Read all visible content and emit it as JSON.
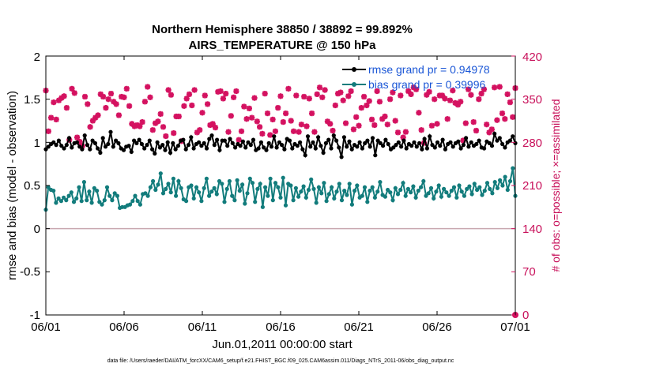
{
  "chart_data": {
    "type": "line",
    "title_line1": "Northern Hemisphere 38850 / 38892 = 99.892%",
    "title_line2": "AIRS_TEMPERATURE @ 150 hPa",
    "xlabel": "Jun.01,2011 00:00:00 start",
    "ylabel_left": "rmse and bias (model - observation)",
    "ylabel_right": "# of obs: o=possible; ×=assimilated",
    "footer": "data file: /Users/raeder/DAI/ATM_forcXX/CAM6_setup/f.e21.FHIST_BGC.f09_025.CAM6assim.011/Diags_NTrS_2011-06/obs_diag_output.nc",
    "x_ticks": [
      "06/01",
      "06/06",
      "06/11",
      "06/16",
      "06/21",
      "06/26",
      "07/01"
    ],
    "x_range_days": [
      0,
      30
    ],
    "ylim_left": [
      -1,
      2
    ],
    "y_ticks_left": [
      "2",
      "1.5",
      "1",
      "0.5",
      "0",
      "-0.5",
      "-1"
    ],
    "ylim_right": [
      0,
      420
    ],
    "y_ticks_right": [
      "420",
      "350",
      "280",
      "210",
      "140",
      "70",
      "0"
    ],
    "colors": {
      "rmse": "#000000",
      "bias": "#127c7c",
      "obs": "#d41260",
      "zero_line": "#c9a8b0"
    },
    "series": [
      {
        "name": "rmse",
        "legend": "rmse grand pr = 0.94978",
        "values": [
          0.92,
          0.95,
          0.98,
          1.0,
          0.97,
          1.02,
          0.96,
          0.93,
          0.97,
          1.05,
          0.94,
          0.99,
          1.0,
          0.95,
          0.92,
          1.08,
          0.97,
          0.92,
          1.02,
          0.99,
          0.93,
          0.88,
          1.05,
          0.95,
          0.98,
          1.12,
          0.95,
          1.02,
          0.99,
          0.93,
          0.91,
          0.95,
          0.96,
          0.89,
          1.02,
          0.99,
          1.03,
          0.98,
          0.93,
          0.97,
          1.02,
          0.92,
          0.87,
          1.0,
          0.94,
          0.97,
          0.91,
          1.0,
          0.88,
          0.99,
          0.92,
          0.96,
          1.02,
          1.03,
          0.92,
          0.97,
          1.06,
          0.93,
          0.98,
          1.0,
          0.96,
          0.99,
          0.93,
          1.04,
          1.08,
          0.97,
          1.03,
          0.91,
          1.02,
          1.02,
          0.96,
          1.04,
          0.99,
          0.94,
          0.98,
          0.96,
          1.01,
          0.94,
          1.0,
          0.97,
          1.03,
          0.91,
          0.93,
          1.0,
          0.94,
          0.91,
          0.99,
          0.95,
          1.07,
          0.94,
          1.0,
          0.97,
          0.92,
          1.04,
          1.02,
          0.93,
          0.98,
          0.96,
          1.0,
          0.92,
          0.85,
          1.07,
          0.95,
          1.0,
          0.93,
          1.06,
          0.96,
          0.88,
          0.99,
          1.03,
          0.93,
          1.08,
          1.02,
          0.94,
          0.83,
          1.06,
          0.95,
          1.01,
          0.92,
          0.97,
          0.95,
          1.0,
          0.93,
          0.99,
          1.02,
          0.95,
          1.05,
          0.85,
          1.02,
          0.99,
          0.96,
          1.03,
          0.98,
          0.92,
          0.94,
          0.97,
          1.0,
          0.95,
          1.02,
          0.93,
          0.98,
          0.96,
          1.0,
          0.95,
          0.99,
          0.92,
          1.04,
          0.93,
          1.07,
          0.97,
          0.94,
          1.0,
          0.96,
          1.03,
          0.92,
          0.98,
          1.0,
          0.95,
          0.99,
          1.01,
          0.93,
          0.97,
          1.05,
          0.95,
          1.0,
          0.96,
          0.98,
          1.02,
          0.94,
          0.93,
          1.01,
          0.99,
          0.96,
          1.1,
          1.02,
          1.05,
          0.98,
          0.94,
          1.0,
          1.02,
          1.07,
          0.99
        ]
      },
      {
        "name": "bias",
        "legend": "bias grand pr = 0.39996",
        "values": [
          0.22,
          0.48,
          0.45,
          0.44,
          0.3,
          0.35,
          0.32,
          0.36,
          0.33,
          0.38,
          0.42,
          0.31,
          0.35,
          0.48,
          0.32,
          0.54,
          0.33,
          0.43,
          0.3,
          0.47,
          0.44,
          0.31,
          0.28,
          0.33,
          0.48,
          0.38,
          0.33,
          0.41,
          0.38,
          0.24,
          0.25,
          0.25,
          0.27,
          0.28,
          0.32,
          0.38,
          0.32,
          0.28,
          0.4,
          0.41,
          0.38,
          0.48,
          0.55,
          0.45,
          0.51,
          0.64,
          0.41,
          0.46,
          0.52,
          0.42,
          0.58,
          0.38,
          0.55,
          0.47,
          0.34,
          0.32,
          0.48,
          0.5,
          0.35,
          0.48,
          0.42,
          0.32,
          0.47,
          0.58,
          0.38,
          0.43,
          0.47,
          0.4,
          0.55,
          0.52,
          0.31,
          0.46,
          0.55,
          0.38,
          0.33,
          0.56,
          0.44,
          0.51,
          0.29,
          0.41,
          0.58,
          0.53,
          0.31,
          0.46,
          0.52,
          0.25,
          0.48,
          0.38,
          0.58,
          0.33,
          0.53,
          0.48,
          0.36,
          0.59,
          0.27,
          0.52,
          0.5,
          0.33,
          0.47,
          0.37,
          0.43,
          0.49,
          0.36,
          0.45,
          0.57,
          0.46,
          0.3,
          0.48,
          0.41,
          0.53,
          0.32,
          0.4,
          0.48,
          0.35,
          0.43,
          0.52,
          0.33,
          0.44,
          0.39,
          0.52,
          0.28,
          0.44,
          0.5,
          0.36,
          0.38,
          0.48,
          0.31,
          0.44,
          0.48,
          0.36,
          0.43,
          0.54,
          0.39,
          0.37,
          0.45,
          0.42,
          0.33,
          0.47,
          0.4,
          0.45,
          0.53,
          0.38,
          0.46,
          0.42,
          0.49,
          0.36,
          0.44,
          0.48,
          0.55,
          0.38,
          0.41,
          0.47,
          0.35,
          0.43,
          0.5,
          0.37,
          0.46,
          0.42,
          0.38,
          0.44,
          0.48,
          0.36,
          0.5,
          0.43,
          0.38,
          0.46,
          0.49,
          0.4,
          0.52,
          0.45,
          0.48,
          0.39,
          0.44,
          0.53,
          0.46,
          0.41,
          0.54,
          0.47,
          0.56,
          0.5,
          0.6,
          0.45,
          0.55,
          0.7,
          0.38
        ]
      },
      {
        "name": "obs",
        "values": [
          364,
          298,
          320,
          345,
          317,
          348,
          352,
          355,
          336,
          284,
          367,
          360,
          288,
          281,
          274,
          354,
          342,
          305,
          315,
          320,
          324,
          358,
          354,
          336,
          350,
          359,
          346,
          342,
          324,
          354,
          353,
          367,
          339,
          310,
          306,
          308,
          306,
          313,
          346,
          370,
          353,
          300,
          311,
          314,
          326,
          305,
          290,
          365,
          357,
          295,
          322,
          322,
          282,
          339,
          351,
          358,
          340,
          365,
          296,
          300,
          328,
          356,
          342,
          308,
          310,
          304,
          362,
          363,
          351,
          359,
          297,
          323,
          353,
          363,
          284,
          298,
          338,
          318,
          335,
          320,
          352,
          314,
          305,
          294,
          359,
          327,
          292,
          317,
          298,
          336,
          355,
          313,
          327,
          367,
          315,
          298,
          356,
          297,
          309,
          354,
          306,
          351,
          327,
          297,
          358,
          369,
          353,
          365,
          314,
          310,
          299,
          340,
          359,
          361,
          348,
          311,
          355,
          363,
          301,
          321,
          307,
          336,
          354,
          340,
          347,
          317,
          308,
          363,
          346,
          318,
          322,
          309,
          350,
          361,
          315,
          296,
          356,
          288,
          297,
          363,
          358,
          369,
          366,
          328,
          300,
          279,
          357,
          362,
          307,
          350,
          310,
          356,
          356,
          351,
          318,
          348,
          364,
          344,
          341,
          346,
          283,
          311,
          366,
          357,
          313,
          299,
          350,
          359,
          366,
          309,
          296,
          301,
          369,
          316,
          370,
          327,
          318,
          358,
          345,
          321,
          368
        ]
      }
    ]
  }
}
